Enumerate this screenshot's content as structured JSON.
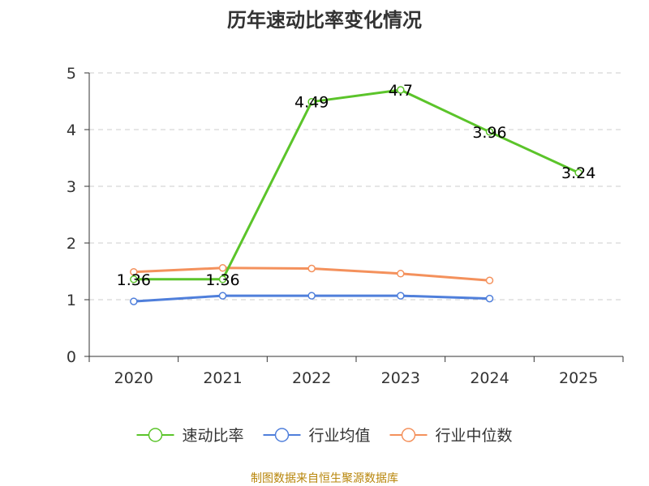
{
  "chart_data": {
    "type": "line",
    "title": "历年速动比率变化情况",
    "categories": [
      "2020",
      "2021",
      "2022",
      "2023",
      "2024",
      "2025"
    ],
    "ylim": [
      0,
      5
    ],
    "yticks": [
      0,
      1,
      2,
      3,
      4,
      5
    ],
    "grid": true,
    "legend_position": "bottom",
    "series": [
      {
        "name": "速动比率",
        "color": "#5bc42a",
        "values": [
          1.36,
          1.36,
          4.49,
          4.7,
          3.96,
          3.24
        ],
        "labels": [
          "1.36",
          "1.36",
          "4.49",
          "4.7",
          "3.96",
          "3.24"
        ]
      },
      {
        "name": "行业均值",
        "color": "#4f7fdb",
        "values": [
          0.97,
          1.07,
          1.07,
          1.07,
          1.02,
          null
        ]
      },
      {
        "name": "行业中位数",
        "color": "#f4915c",
        "values": [
          1.49,
          1.56,
          1.55,
          1.46,
          1.34,
          null
        ]
      }
    ],
    "source": "制图数据来自恒生聚源数据库"
  }
}
